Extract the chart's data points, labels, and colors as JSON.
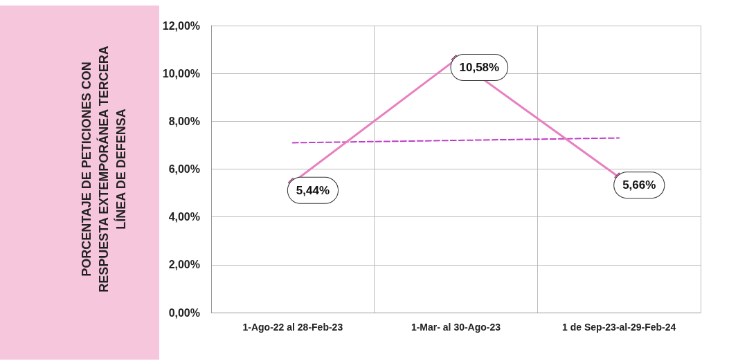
{
  "chart_data": {
    "type": "line",
    "ylabel": "PORCENTAJE DE PETICIONES CON RESPUESTA EXTEMPORÁNEA TERCERA LÍNEA DE DEFENSA",
    "categories": [
      "1-Ago-22 al 28-Feb-23",
      "1-Mar- al 30-Ago-23",
      "1 de Sep-23-al-29-Feb-24"
    ],
    "series": [
      {
        "color": "#e87fc0",
        "values": [
          5.44,
          10.58,
          5.66
        ],
        "value_labels": [
          "5,44%",
          "10,58%",
          "5,66%"
        ],
        "marker": "diamond",
        "line_style": "solid"
      },
      {
        "color": "#c03cc8",
        "values": [
          7.1,
          7.2,
          7.3
        ],
        "marker": "none",
        "line_style": "dashed"
      }
    ],
    "ylim": [
      0,
      12
    ],
    "yticks": [
      {
        "value": 0,
        "label": "0,00%"
      },
      {
        "value": 2,
        "label": "2,00%"
      },
      {
        "value": 4,
        "label": "4,00%"
      },
      {
        "value": 6,
        "label": "6,00%"
      },
      {
        "value": 8,
        "label": "8,00%"
      },
      {
        "value": 10,
        "label": "10,00%"
      },
      {
        "value": 12,
        "label": "12,00%"
      }
    ],
    "grid": true
  }
}
